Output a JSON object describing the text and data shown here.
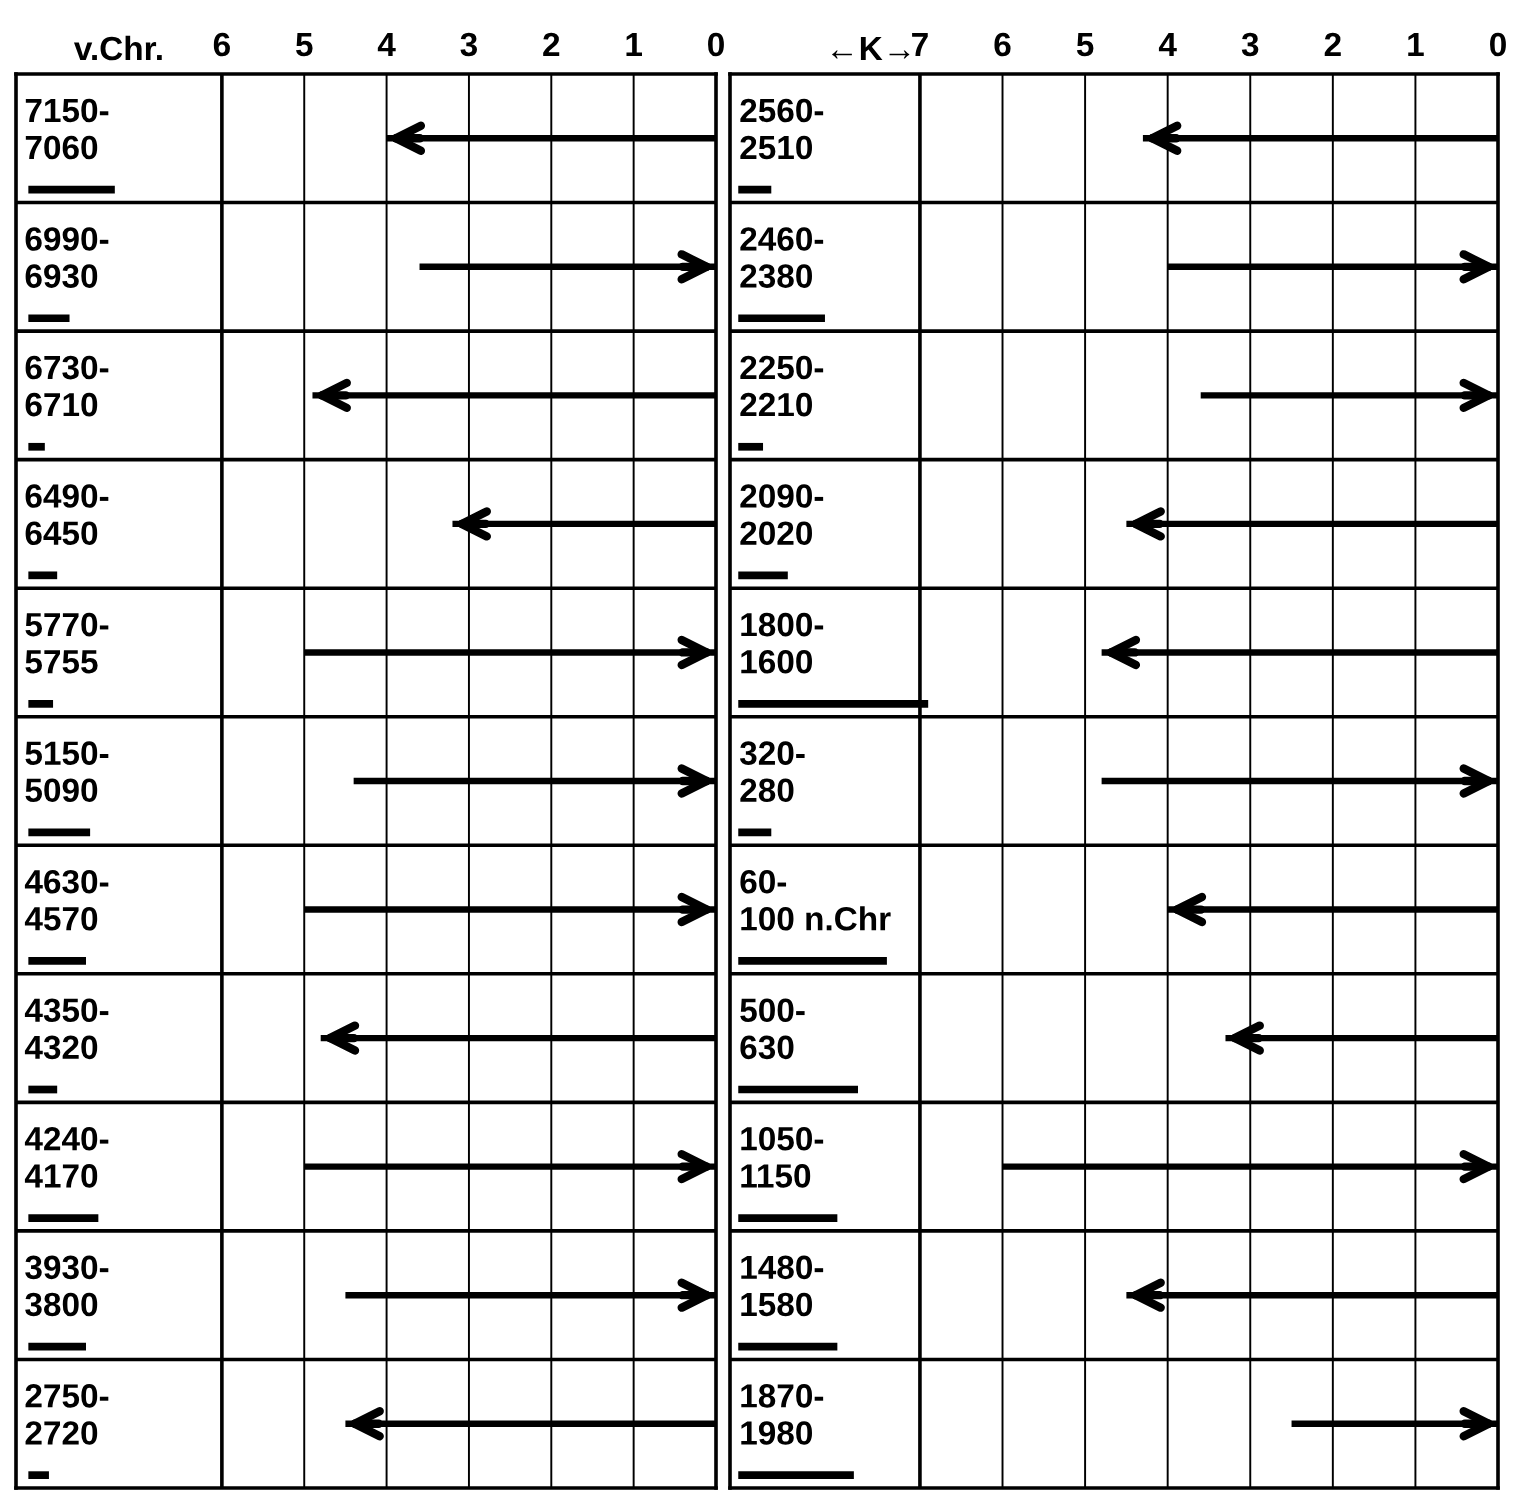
{
  "chart_data": [
    {
      "type": "bar",
      "orientation": "horizontal",
      "xlabel": "v.Chr.",
      "xlim": [
        8.5,
        0
      ],
      "xticks": [
        6,
        5,
        4,
        3,
        2,
        1,
        0
      ],
      "grid": true,
      "categories": [
        "7150-\n7060",
        "6990-\n6930",
        "6730-\n6710",
        "6490-\n6450",
        "5770-\n5755",
        "5150-\n5090",
        "4630-\n4570",
        "4350-\n4320",
        "4240-\n4170",
        "3930-\n3800",
        "2750-\n2720"
      ],
      "series": [
        {
          "color": "#000000",
          "marker": "triangle",
          "values": [
            4.0,
            null,
            4.9,
            3.2,
            null,
            null,
            null,
            4.8,
            null,
            null,
            4.5
          ]
        },
        {
          "color": "#000000",
          "marker": "diamond",
          "values": [
            null,
            3.6,
            null,
            null,
            5.0,
            4.4,
            5.0,
            null,
            5.0,
            4.5,
            null
          ]
        },
        {
          "color": "#000000",
          "marker": "none",
          "base": [
            8.35,
            8.35,
            8.35,
            8.35,
            8.35,
            8.35,
            8.35,
            8.35,
            8.35,
            8.35,
            8.35
          ],
          "values": [
            -1.05,
            -0.5,
            -0.2,
            -0.35,
            -0.3,
            -0.75,
            -0.7,
            -0.35,
            -0.85,
            -0.7,
            -0.25
          ]
        }
      ]
    },
    {
      "type": "bar",
      "orientation": "horizontal",
      "xlabel": "←K→",
      "xlim": [
        9.3,
        0
      ],
      "xticks": [
        7,
        6,
        5,
        4,
        3,
        2,
        1,
        0
      ],
      "grid": true,
      "categories": [
        "2560-\n2510",
        "2460-\n2380",
        "2250-\n2210",
        "2090-\n2020",
        "1800-\n1600",
        "320-\n280",
        "60-\n100 n.Chr",
        "500-\n630",
        "1050-\n1150",
        "1480-\n1580",
        "1870-\n1980"
      ],
      "series": [
        {
          "color": "#000000",
          "marker": "triangle",
          "values": [
            4.3,
            null,
            null,
            4.5,
            4.8,
            null,
            4.0,
            3.3,
            null,
            4.5,
            null
          ]
        },
        {
          "color": "#000000",
          "marker": "diamond",
          "values": [
            null,
            4.0,
            3.6,
            null,
            null,
            4.8,
            null,
            null,
            6.0,
            null,
            2.5
          ]
        },
        {
          "color": "#000000",
          "marker": "none",
          "base": [
            9.2,
            9.2,
            9.2,
            9.2,
            9.2,
            9.2,
            9.2,
            9.2,
            9.2,
            9.2,
            9.2
          ],
          "values": [
            -0.4,
            -1.05,
            -0.3,
            -0.6,
            -2.3,
            -0.4,
            -1.8,
            -1.45,
            -1.2,
            -1.2,
            -1.4
          ]
        }
      ]
    }
  ]
}
